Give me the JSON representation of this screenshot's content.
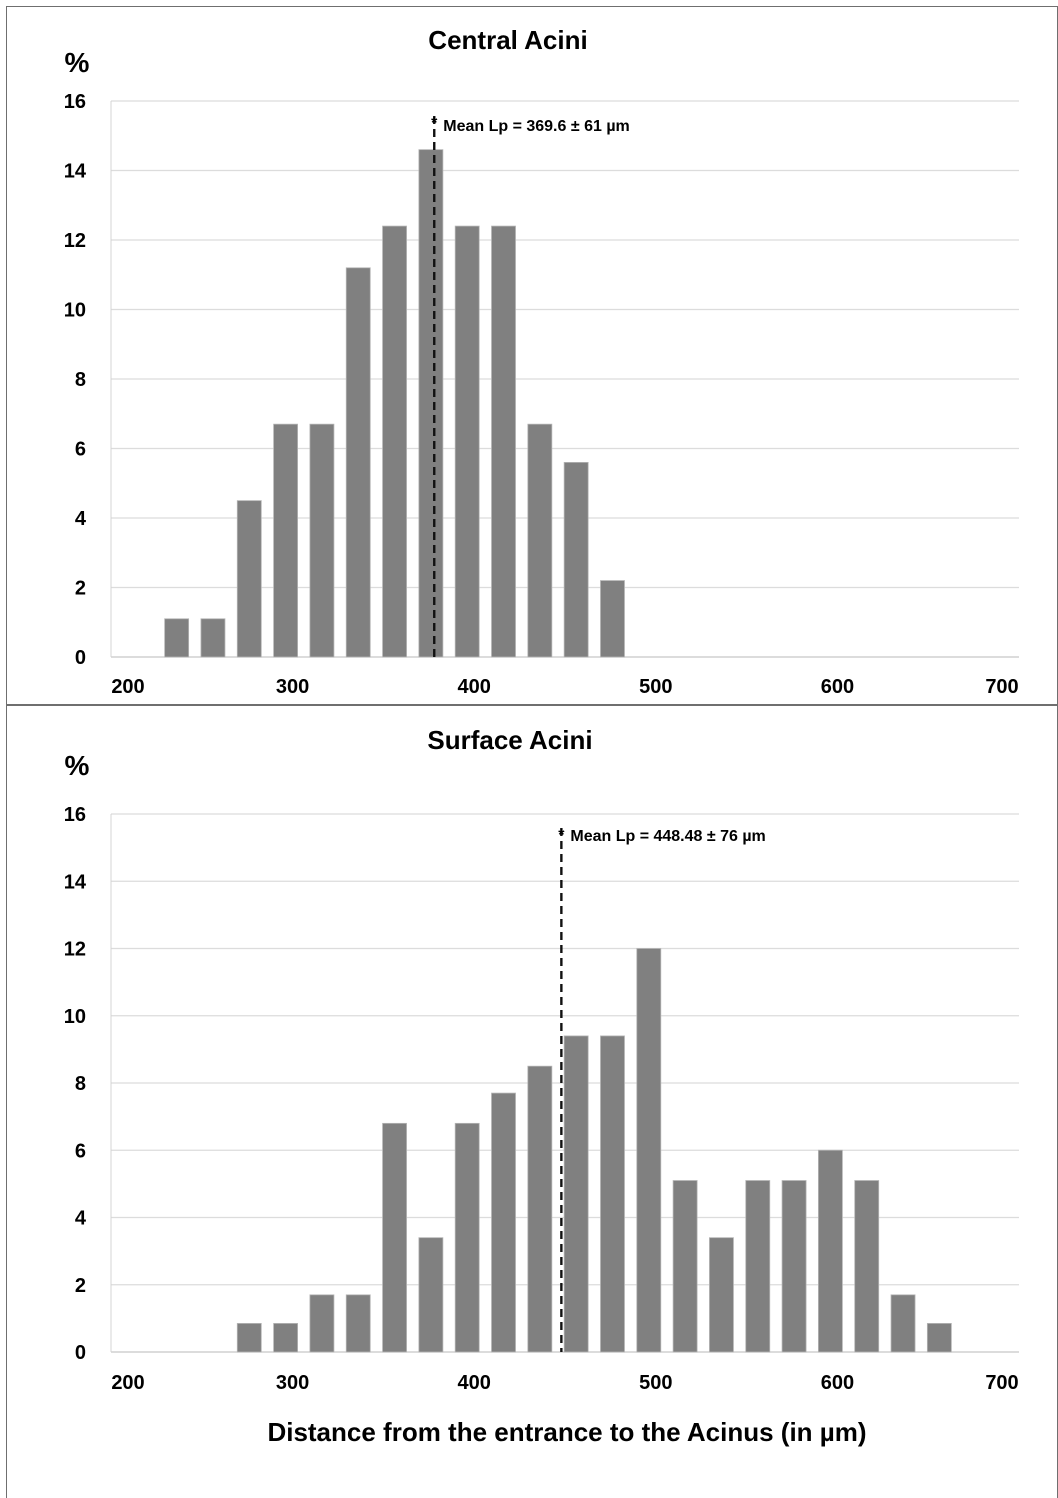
{
  "chart_data": [
    {
      "type": "bar",
      "title": "Central Acini",
      "ylabel": "%",
      "xlabel": "",
      "xlim": [
        200,
        700
      ],
      "ylim": [
        0,
        16
      ],
      "x_ticks": [
        "200",
        "300",
        "400",
        "500",
        "600",
        "700"
      ],
      "y_ticks": [
        "0",
        "2",
        "4",
        "6",
        "8",
        "10",
        "12",
        "14",
        "16"
      ],
      "grid": true,
      "bar_color": "#808080",
      "x": [
        240,
        260,
        280,
        300,
        320,
        340,
        360,
        380,
        400,
        420,
        440,
        460,
        480
      ],
      "values": [
        1.1,
        1.1,
        4.5,
        6.7,
        6.7,
        11.2,
        12.4,
        14.6,
        12.4,
        12.4,
        6.7,
        5.6,
        2.2
      ],
      "annotation": {
        "x": 378,
        "marker": "*",
        "text": "Mean Lp = 369.6 ± 61 µm"
      }
    },
    {
      "type": "bar",
      "title": "Surface Acini",
      "ylabel": "%",
      "xlabel": "Distance from the entrance to the Acinus (in µm)",
      "xlim": [
        200,
        700
      ],
      "ylim": [
        0,
        16
      ],
      "x_ticks": [
        "200",
        "300",
        "400",
        "500",
        "600",
        "700"
      ],
      "y_ticks": [
        "0",
        "2",
        "4",
        "6",
        "8",
        "10",
        "12",
        "14",
        "16"
      ],
      "grid": true,
      "bar_color": "#808080",
      "x": [
        280,
        300,
        320,
        340,
        360,
        380,
        400,
        420,
        440,
        460,
        480,
        500,
        520,
        540,
        560,
        580,
        600,
        620,
        640,
        660
      ],
      "values": [
        0.85,
        0.85,
        1.7,
        1.7,
        6.8,
        3.4,
        6.8,
        7.7,
        8.5,
        9.4,
        9.4,
        12.0,
        5.1,
        3.4,
        5.1,
        5.1,
        6.0,
        5.1,
        1.7,
        0.85
      ],
      "annotation": {
        "x": 448,
        "marker": "*",
        "text": "Mean Lp = 448.48 ± 76 µm"
      }
    }
  ]
}
